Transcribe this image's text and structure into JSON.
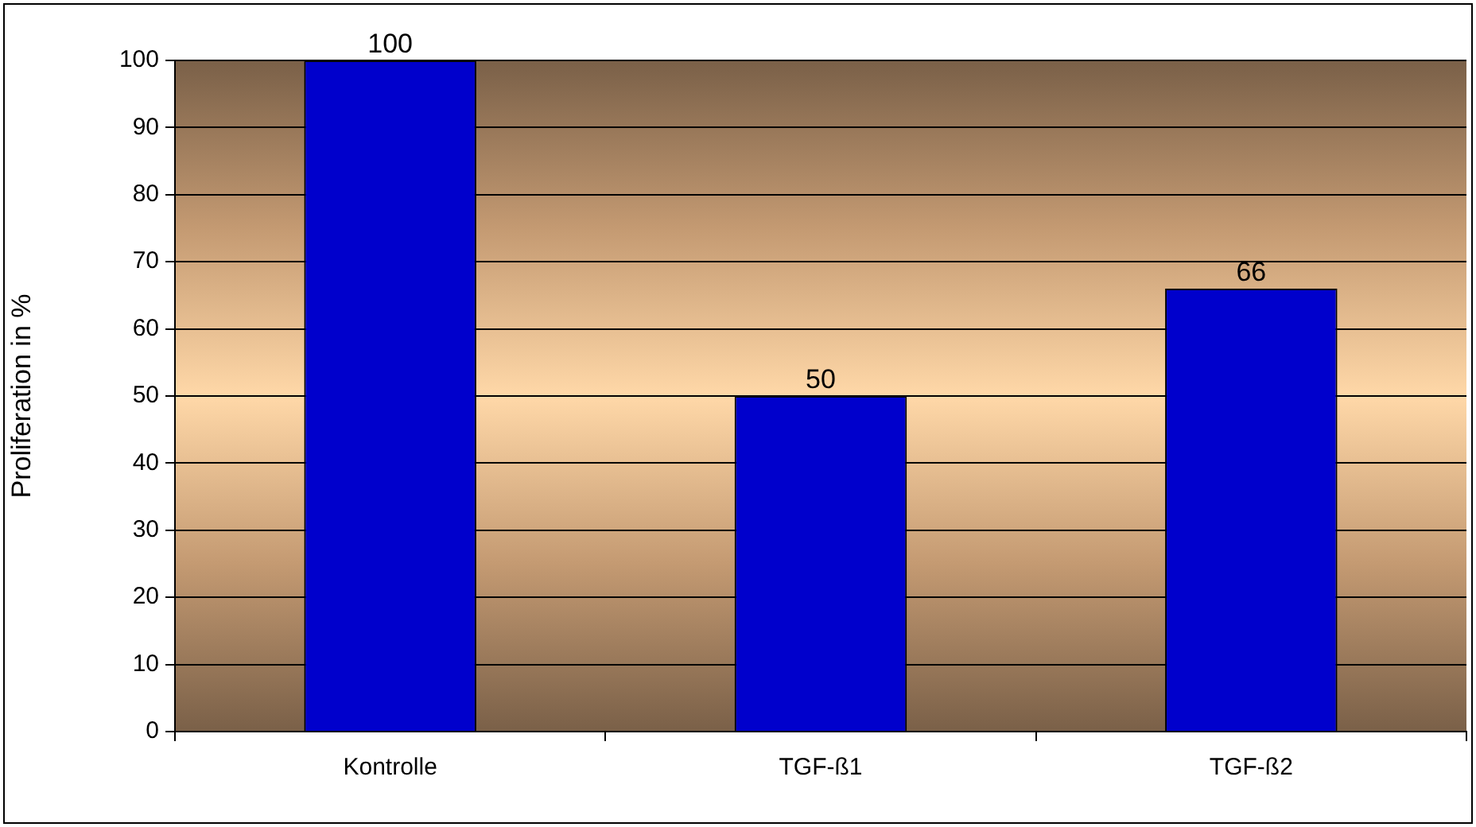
{
  "chart_data": {
    "type": "bar",
    "ylabel": "Proliferation in %",
    "categories": [
      "Kontrolle",
      "TGF-ß1",
      "TGF-ß2"
    ],
    "values": [
      100,
      50,
      66
    ],
    "color": "#0000cc",
    "ylim": [
      0,
      100
    ],
    "yticks": [
      0,
      10,
      20,
      30,
      40,
      50,
      60,
      70,
      80,
      90,
      100
    ],
    "grid": "y",
    "legend": false,
    "data_labels": true
  }
}
